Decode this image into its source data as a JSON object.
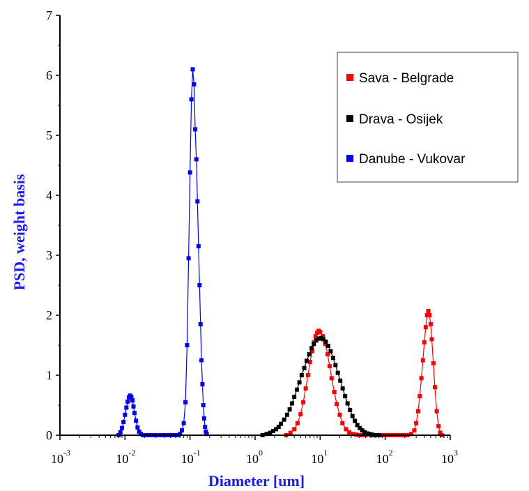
{
  "chart_data": {
    "type": "scatter",
    "title": "",
    "xlabel": "Diameter [um]",
    "ylabel": "PSD, weight basis",
    "xscale": "log",
    "xlim": [
      0.001,
      1000
    ],
    "ylim": [
      0,
      7
    ],
    "x_ticks": [
      {
        "base": "10",
        "exp": "-3",
        "value": 0.001
      },
      {
        "base": "10",
        "exp": "-2",
        "value": 0.01
      },
      {
        "base": "10",
        "exp": "-1",
        "value": 0.1
      },
      {
        "base": "10",
        "exp": "0",
        "value": 1
      },
      {
        "base": "10",
        "exp": "1",
        "value": 10
      },
      {
        "base": "10",
        "exp": "2",
        "value": 100
      },
      {
        "base": "10",
        "exp": "3",
        "value": 1000
      }
    ],
    "y_ticks": [
      "0",
      "1",
      "2",
      "3",
      "4",
      "5",
      "6",
      "7"
    ],
    "label_color": "#1a1aff",
    "grid": false,
    "legend_position": "top-right",
    "series": [
      {
        "name": "Sava - Belgrade",
        "color": "#ff0000",
        "marker": "square",
        "x": [
          3.0,
          3.5,
          4.0,
          4.5,
          5.0,
          5.5,
          6.0,
          6.5,
          7.0,
          7.5,
          8.0,
          8.5,
          9.0,
          9.5,
          10.0,
          11.0,
          12.0,
          13.0,
          14.0,
          15.0,
          16.5,
          18.0,
          20.0,
          22.0,
          25.0,
          28.0,
          32.0,
          36.0,
          40.0,
          45.0,
          50.0,
          60.0,
          70.0,
          80.0,
          90.0,
          100.0,
          110.0,
          120.0,
          130.0,
          140.0,
          150.0,
          165.0,
          180.0,
          200.0,
          220.0,
          250.0,
          280.0,
          300.0,
          320.0,
          340.0,
          360.0,
          380.0,
          400.0,
          420.0,
          440.0,
          460.0,
          480.0,
          500.0,
          520.0,
          550.0,
          580.0,
          620.0,
          660.0,
          700.0,
          740.0
        ],
        "y": [
          0.0,
          0.04,
          0.1,
          0.2,
          0.35,
          0.55,
          0.78,
          1.0,
          1.22,
          1.4,
          1.55,
          1.65,
          1.71,
          1.74,
          1.72,
          1.65,
          1.52,
          1.35,
          1.15,
          0.95,
          0.72,
          0.52,
          0.34,
          0.2,
          0.1,
          0.05,
          0.02,
          0.01,
          0.0,
          0.0,
          0.0,
          0.0,
          0.0,
          0.0,
          0.0,
          0.0,
          0.0,
          0.0,
          0.0,
          0.0,
          0.0,
          0.0,
          0.0,
          0.0,
          0.0,
          0.02,
          0.08,
          0.2,
          0.4,
          0.65,
          0.95,
          1.25,
          1.55,
          1.8,
          2.0,
          2.07,
          2.0,
          1.85,
          1.6,
          1.2,
          0.8,
          0.4,
          0.15,
          0.04,
          0.0
        ]
      },
      {
        "name": "Drava - Osijek",
        "color": "#000000",
        "marker": "square",
        "x": [
          1.3,
          1.5,
          1.7,
          1.9,
          2.1,
          2.3,
          2.5,
          2.8,
          3.1,
          3.4,
          3.7,
          4.0,
          4.4,
          4.8,
          5.2,
          5.7,
          6.2,
          6.8,
          7.4,
          8.0,
          8.7,
          9.5,
          10.3,
          11.2,
          12.2,
          13.3,
          14.5,
          15.8,
          17.2,
          18.7,
          20.4,
          22.2,
          24.2,
          26.4,
          28.8,
          31.4,
          34.2,
          37.3,
          40.7,
          44.4,
          48.4,
          52.8,
          57.6,
          62.8,
          68.5,
          74.7,
          80.0
        ],
        "y": [
          0.0,
          0.02,
          0.04,
          0.07,
          0.1,
          0.14,
          0.19,
          0.26,
          0.34,
          0.43,
          0.53,
          0.64,
          0.76,
          0.88,
          1.0,
          1.12,
          1.24,
          1.35,
          1.45,
          1.52,
          1.58,
          1.61,
          1.62,
          1.6,
          1.56,
          1.49,
          1.4,
          1.29,
          1.17,
          1.04,
          0.91,
          0.78,
          0.65,
          0.53,
          0.42,
          0.32,
          0.24,
          0.17,
          0.12,
          0.08,
          0.05,
          0.03,
          0.02,
          0.01,
          0.0,
          0.0,
          0.0
        ]
      },
      {
        "name": "Danube - Vukovar",
        "color": "#0000ff",
        "marker": "square",
        "x": [
          0.008,
          0.0085,
          0.009,
          0.0095,
          0.01,
          0.0105,
          0.011,
          0.0115,
          0.012,
          0.0125,
          0.013,
          0.0135,
          0.014,
          0.0148,
          0.0156,
          0.0165,
          0.0175,
          0.019,
          0.021,
          0.023,
          0.026,
          0.03,
          0.035,
          0.04,
          0.045,
          0.05,
          0.055,
          0.06,
          0.065,
          0.07,
          0.075,
          0.08,
          0.085,
          0.09,
          0.095,
          0.1,
          0.105,
          0.11,
          0.115,
          0.12,
          0.125,
          0.13,
          0.135,
          0.14,
          0.145,
          0.15,
          0.155,
          0.16,
          0.165,
          0.17,
          0.175,
          0.18
        ],
        "y": [
          0.0,
          0.05,
          0.12,
          0.22,
          0.34,
          0.46,
          0.56,
          0.63,
          0.66,
          0.64,
          0.58,
          0.48,
          0.37,
          0.24,
          0.13,
          0.06,
          0.02,
          0.0,
          0.0,
          0.0,
          0.0,
          0.0,
          0.0,
          0.0,
          0.0,
          0.0,
          0.0,
          0.0,
          0.0,
          0.02,
          0.08,
          0.2,
          0.55,
          1.5,
          2.95,
          4.38,
          5.6,
          6.1,
          5.85,
          5.1,
          4.6,
          3.9,
          3.15,
          2.5,
          1.85,
          1.25,
          0.85,
          0.5,
          0.28,
          0.14,
          0.06,
          0.02
        ]
      }
    ]
  }
}
